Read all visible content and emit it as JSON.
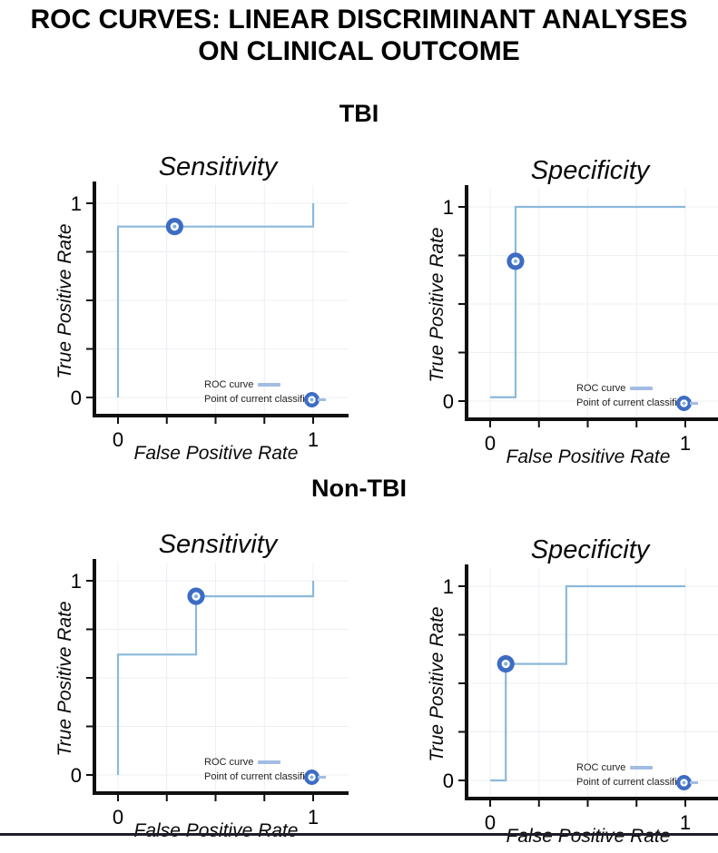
{
  "title": {
    "line1": "ROC CURVES: LINEAR DISCRIMINANT ANALYSES",
    "line2": "ON CLINICAL OUTCOME"
  },
  "sections": [
    {
      "label": "TBI"
    },
    {
      "label": "Non-TBI"
    }
  ],
  "legend": {
    "roc_label": "ROC curve",
    "point_label": "Point of current classifier"
  },
  "axis": {
    "tick_values": [
      0,
      0.25,
      0.5,
      0.75,
      1
    ],
    "labeled_ticks": [
      {
        "value": 0,
        "label": "0"
      },
      {
        "value": 1,
        "label": "1"
      }
    ]
  },
  "colors": {
    "curve": "#8BB9DB",
    "swatch": "#A2BCE4",
    "marker": "#3D6CC3",
    "marker_center": "#7FB0DC",
    "grid": "#ECEFF3",
    "axis": "#101010",
    "rule": "#1D1D29"
  },
  "chart_data": [
    {
      "type": "line",
      "subtype": "roc-step",
      "section": "TBI",
      "title": "Sensitivity",
      "xlabel": "False Positive Rate",
      "ylabel": "True Positive Rate",
      "xlim": [
        0,
        1
      ],
      "ylim": [
        0,
        1
      ],
      "grid": true,
      "legend_position": "bottom-right",
      "legend_entries": [
        "ROC curve",
        "Point of current classifier"
      ],
      "curve": [
        [
          0,
          0
        ],
        [
          0,
          0.88
        ],
        [
          1,
          0.88
        ],
        [
          1,
          1
        ]
      ],
      "classifier_point": [
        0.29,
        0.88
      ]
    },
    {
      "type": "line",
      "subtype": "roc-step",
      "section": "TBI",
      "title": "Specificity",
      "xlabel": "False Positive Rate",
      "ylabel": "True Positive Rate",
      "xlim": [
        0,
        1
      ],
      "ylim": [
        0,
        1
      ],
      "grid": true,
      "legend_position": "bottom-right",
      "legend_entries": [
        "ROC curve",
        "Point of current classifier"
      ],
      "curve": [
        [
          0,
          0.02
        ],
        [
          0.13,
          0.02
        ],
        [
          0.13,
          1
        ],
        [
          1,
          1
        ]
      ],
      "classifier_point": [
        0.13,
        0.72
      ]
    },
    {
      "type": "line",
      "subtype": "roc-step",
      "section": "Non-TBI",
      "title": "Sensitivity",
      "xlabel": "False Positive Rate",
      "ylabel": "True Positive Rate",
      "xlim": [
        0,
        1
      ],
      "ylim": [
        0,
        1
      ],
      "grid": true,
      "legend_position": "bottom-right",
      "legend_entries": [
        "ROC curve",
        "Point of current classifier"
      ],
      "curve": [
        [
          0,
          0
        ],
        [
          0,
          0.62
        ],
        [
          0.4,
          0.62
        ],
        [
          0.4,
          0.92
        ],
        [
          1,
          0.92
        ],
        [
          1,
          1
        ]
      ],
      "classifier_point": [
        0.4,
        0.92
      ]
    },
    {
      "type": "line",
      "subtype": "roc-step",
      "section": "Non-TBI",
      "title": "Specificity",
      "xlabel": "False Positive Rate",
      "ylabel": "True Positive Rate",
      "xlim": [
        0,
        1
      ],
      "ylim": [
        0,
        1
      ],
      "grid": true,
      "legend_position": "bottom-right",
      "legend_entries": [
        "ROC curve",
        "Point of current classifier"
      ],
      "curve": [
        [
          0,
          0
        ],
        [
          0.08,
          0
        ],
        [
          0.08,
          0.6
        ],
        [
          0.39,
          0.6
        ],
        [
          0.39,
          1
        ],
        [
          1,
          1
        ]
      ],
      "classifier_point": [
        0.08,
        0.6
      ]
    }
  ]
}
